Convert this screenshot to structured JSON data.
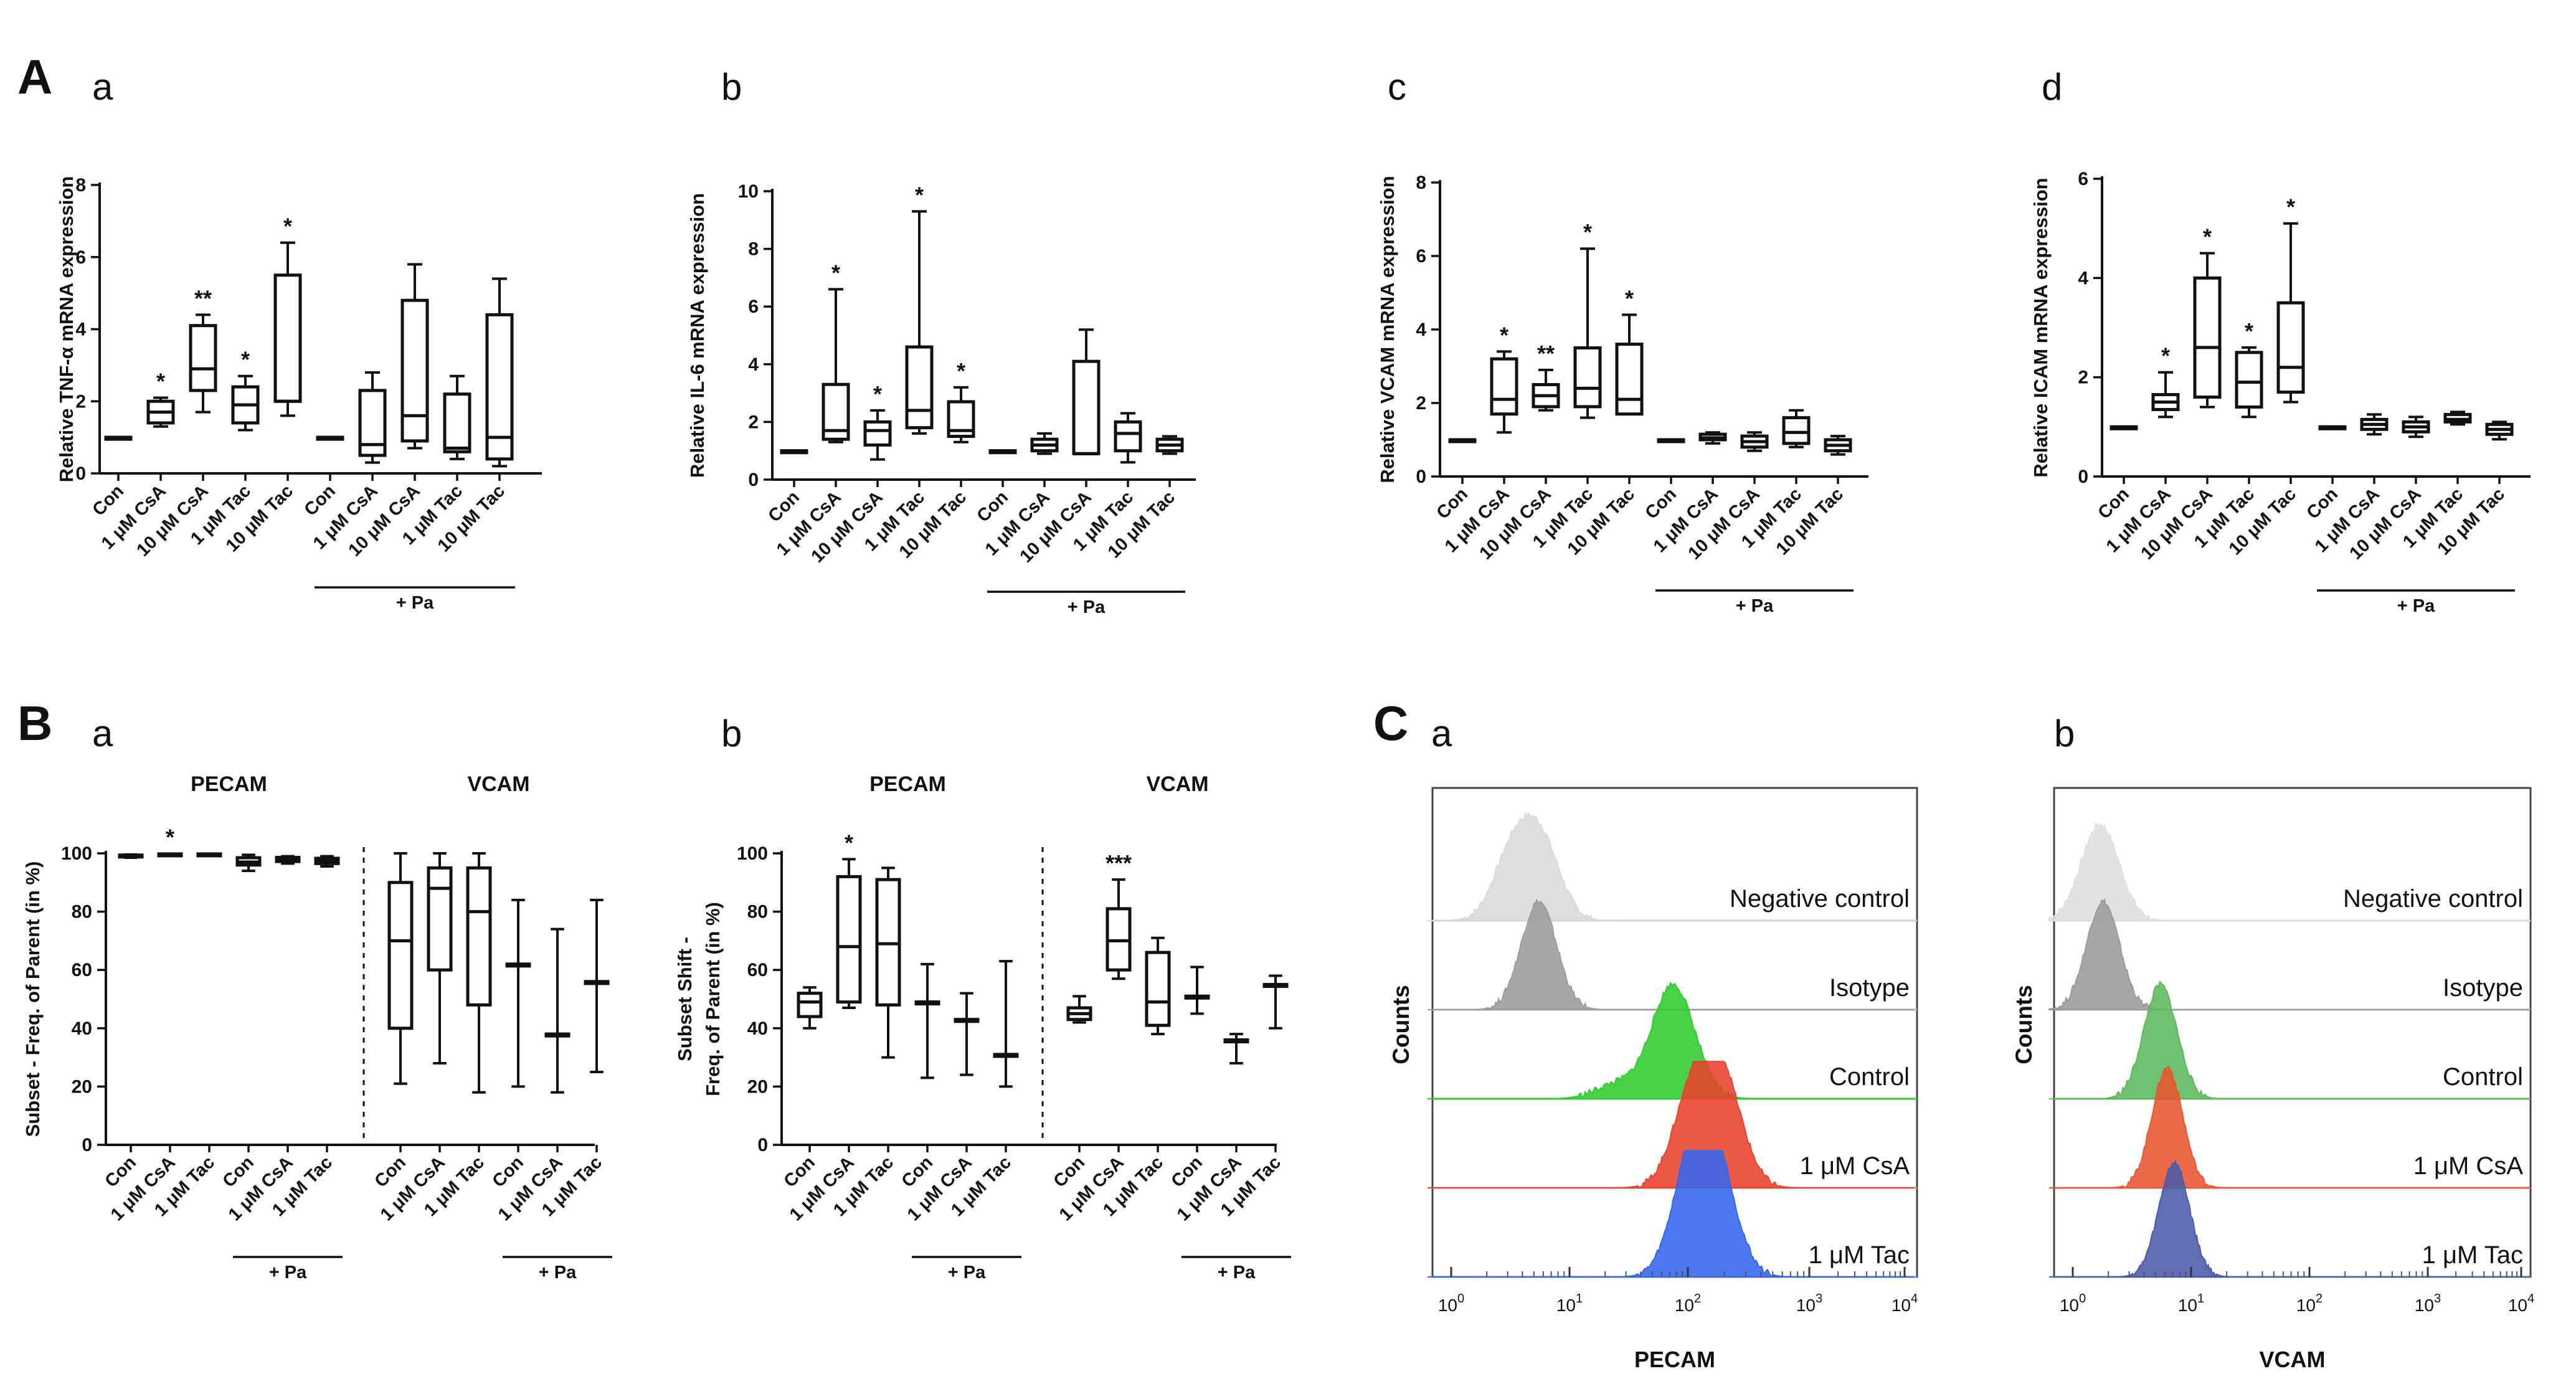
{
  "panel_labels": [
    {
      "letter": "A",
      "sub": "a"
    },
    {
      "letter": "",
      "sub": "b"
    },
    {
      "letter": "",
      "sub": "c"
    },
    {
      "letter": "",
      "sub": "d"
    },
    {
      "letter": "B",
      "sub": "a"
    },
    {
      "letter": "",
      "sub": "b"
    },
    {
      "letter": "C",
      "sub": "a"
    },
    {
      "letter": "",
      "sub": "b"
    }
  ],
  "chart_data": [
    {
      "type": "box",
      "panel": "Aa",
      "ylabel": "Relative TNF-α mRNA expression",
      "ylim": [
        0,
        8
      ],
      "yticks": [
        0,
        2,
        4,
        6,
        8
      ],
      "categories": [
        "Con",
        "1 μM CsA",
        "10 μM CsA",
        "1 μM Tac",
        "10 μM Tac",
        "Con",
        "1 μM CsA",
        "10 μM CsA",
        "1 μM Tac",
        "10 μM Tac"
      ],
      "group_label": "+ Pa",
      "group_range": [
        5,
        9
      ],
      "boxes": [
        {
          "min": 1,
          "q1": 1,
          "med": 1,
          "q3": 1,
          "max": 1
        },
        {
          "min": 1.3,
          "q1": 1.4,
          "med": 1.7,
          "q3": 2.0,
          "max": 2.1
        },
        {
          "min": 1.7,
          "q1": 2.3,
          "med": 2.9,
          "q3": 4.1,
          "max": 4.4
        },
        {
          "min": 1.2,
          "q1": 1.4,
          "med": 1.9,
          "q3": 2.4,
          "max": 2.7
        },
        {
          "min": 1.6,
          "q1": 2.0,
          "med": 2.0,
          "q3": 5.5,
          "max": 6.4
        },
        {
          "min": 1,
          "q1": 1,
          "med": 1,
          "q3": 1,
          "max": 1
        },
        {
          "min": 0.3,
          "q1": 0.5,
          "med": 0.8,
          "q3": 2.3,
          "max": 2.8
        },
        {
          "min": 0.7,
          "q1": 0.9,
          "med": 1.6,
          "q3": 4.8,
          "max": 5.8
        },
        {
          "min": 0.4,
          "q1": 0.6,
          "med": 0.7,
          "q3": 2.2,
          "max": 2.7
        },
        {
          "min": 0.2,
          "q1": 0.4,
          "med": 1.0,
          "q3": 4.4,
          "max": 5.4
        }
      ],
      "annotations": [
        {
          "i": 1,
          "text": "*"
        },
        {
          "i": 2,
          "text": "**"
        },
        {
          "i": 3,
          "text": "*"
        },
        {
          "i": 4,
          "text": "*"
        }
      ]
    },
    {
      "type": "box",
      "panel": "Ab",
      "ylabel": "Relative IL-6 mRNA expression",
      "ylim": [
        0,
        10
      ],
      "yticks": [
        0,
        2,
        4,
        6,
        8,
        10
      ],
      "categories": [
        "Con",
        "1 μM CsA",
        "10 μM CsA",
        "1 μM Tac",
        "10 μM Tac",
        "Con",
        "1 μM CsA",
        "10 μM CsA",
        "1 μM Tac",
        "10 μM Tac"
      ],
      "group_label": "+ Pa",
      "group_range": [
        5,
        9
      ],
      "boxes": [
        {
          "min": 1,
          "q1": 1,
          "med": 1,
          "q3": 1,
          "max": 1
        },
        {
          "min": 1.3,
          "q1": 1.4,
          "med": 1.7,
          "q3": 3.3,
          "max": 6.6
        },
        {
          "min": 0.7,
          "q1": 1.2,
          "med": 1.7,
          "q3": 2.0,
          "max": 2.4
        },
        {
          "min": 1.6,
          "q1": 1.8,
          "med": 2.4,
          "q3": 4.6,
          "max": 9.3
        },
        {
          "min": 1.3,
          "q1": 1.5,
          "med": 1.7,
          "q3": 2.7,
          "max": 3.2
        },
        {
          "min": 1,
          "q1": 1,
          "med": 1,
          "q3": 1,
          "max": 1
        },
        {
          "min": 0.9,
          "q1": 1.0,
          "med": 1.2,
          "q3": 1.4,
          "max": 1.6
        },
        {
          "min": 0.9,
          "q1": 0.9,
          "med": 0.9,
          "q3": 4.1,
          "max": 5.2
        },
        {
          "min": 0.6,
          "q1": 1.0,
          "med": 1.6,
          "q3": 2.0,
          "max": 2.3
        },
        {
          "min": 0.9,
          "q1": 1.0,
          "med": 1.2,
          "q3": 1.4,
          "max": 1.5
        }
      ],
      "annotations": [
        {
          "i": 1,
          "text": "*"
        },
        {
          "i": 2,
          "text": "*"
        },
        {
          "i": 3,
          "text": "*"
        },
        {
          "i": 4,
          "text": "*"
        }
      ]
    },
    {
      "type": "box",
      "panel": "Ac",
      "ylabel": "Relative VCAM mRNA expression",
      "ylim": [
        0,
        8
      ],
      "yticks": [
        0,
        2,
        4,
        6,
        8
      ],
      "categories": [
        "Con",
        "1 μM CsA",
        "10 μM CsA",
        "1 μM Tac",
        "10 μM Tac",
        "Con",
        "1 μM CsA",
        "10 μM CsA",
        "1 μM Tac",
        "10 μM Tac"
      ],
      "group_label": "+ Pa",
      "group_range": [
        5,
        9
      ],
      "boxes": [
        {
          "min": 1,
          "q1": 1,
          "med": 1,
          "q3": 1,
          "max": 1
        },
        {
          "min": 1.2,
          "q1": 1.7,
          "med": 2.1,
          "q3": 3.2,
          "max": 3.4
        },
        {
          "min": 1.8,
          "q1": 1.9,
          "med": 2.2,
          "q3": 2.5,
          "max": 2.9
        },
        {
          "min": 1.6,
          "q1": 1.9,
          "med": 2.4,
          "q3": 3.5,
          "max": 6.2
        },
        {
          "min": 1.7,
          "q1": 1.7,
          "med": 2.1,
          "q3": 3.6,
          "max": 4.4
        },
        {
          "min": 1,
          "q1": 1,
          "med": 1,
          "q3": 1,
          "max": 1
        },
        {
          "min": 0.9,
          "q1": 1.0,
          "med": 1.05,
          "q3": 1.15,
          "max": 1.2
        },
        {
          "min": 0.7,
          "q1": 0.8,
          "med": 0.95,
          "q3": 1.1,
          "max": 1.2
        },
        {
          "min": 0.8,
          "q1": 0.9,
          "med": 1.2,
          "q3": 1.6,
          "max": 1.8
        },
        {
          "min": 0.6,
          "q1": 0.7,
          "med": 0.85,
          "q3": 1.0,
          "max": 1.1
        }
      ],
      "annotations": [
        {
          "i": 1,
          "text": "*"
        },
        {
          "i": 2,
          "text": "**"
        },
        {
          "i": 3,
          "text": "*"
        },
        {
          "i": 4,
          "text": "*"
        }
      ]
    },
    {
      "type": "box",
      "panel": "Ad",
      "ylabel": "Relative ICAM mRNA expression",
      "ylim": [
        0,
        6
      ],
      "yticks": [
        0,
        2,
        4,
        6
      ],
      "categories": [
        "Con",
        "1 μM CsA",
        "10 μM CsA",
        "1 μM Tac",
        "10 μM Tac",
        "Con",
        "1 μM CsA",
        "10 μM CsA",
        "1 μM Tac",
        "10 μM Tac"
      ],
      "group_label": "+ Pa",
      "group_range": [
        5,
        9
      ],
      "boxes": [
        {
          "min": 1,
          "q1": 1,
          "med": 1,
          "q3": 1,
          "max": 1
        },
        {
          "min": 1.2,
          "q1": 1.35,
          "med": 1.5,
          "q3": 1.65,
          "max": 2.1
        },
        {
          "min": 1.4,
          "q1": 1.6,
          "med": 2.6,
          "q3": 4.0,
          "max": 4.5
        },
        {
          "min": 1.2,
          "q1": 1.4,
          "med": 1.9,
          "q3": 2.5,
          "max": 2.6
        },
        {
          "min": 1.5,
          "q1": 1.7,
          "med": 2.2,
          "q3": 3.5,
          "max": 5.1
        },
        {
          "min": 1,
          "q1": 1,
          "med": 1,
          "q3": 1,
          "max": 1
        },
        {
          "min": 0.85,
          "q1": 0.95,
          "med": 1.05,
          "q3": 1.15,
          "max": 1.25
        },
        {
          "min": 0.8,
          "q1": 0.9,
          "med": 1.0,
          "q3": 1.1,
          "max": 1.2
        },
        {
          "min": 1.05,
          "q1": 1.1,
          "med": 1.15,
          "q3": 1.25,
          "max": 1.3
        },
        {
          "min": 0.75,
          "q1": 0.85,
          "med": 0.95,
          "q3": 1.05,
          "max": 1.1
        }
      ],
      "annotations": [
        {
          "i": 1,
          "text": "*"
        },
        {
          "i": 2,
          "text": "*"
        },
        {
          "i": 3,
          "text": "*"
        },
        {
          "i": 4,
          "text": "*"
        }
      ]
    },
    {
      "type": "box",
      "panel": "Ba",
      "ylabel": "Subset - Freq. of Parent (in %)",
      "ylim": [
        0,
        100
      ],
      "yticks": [
        0,
        20,
        40,
        60,
        80,
        100
      ],
      "categories": [
        "Con",
        "1 μM CsA",
        "1 μM Tac",
        "Con",
        "1 μM CsA",
        "1 μM Tac",
        "Con",
        "1 μM CsA",
        "1 μM Tac",
        "Con",
        "1 μM CsA",
        "1 μM Tac"
      ],
      "section_titles": [
        "PECAM",
        "VCAM"
      ],
      "group_labels": [
        {
          "label": "+ Pa",
          "range": [
            3,
            5
          ]
        },
        {
          "label": "+ Pa",
          "range": [
            9,
            11
          ]
        }
      ],
      "boxes": [
        {
          "min": 98.5,
          "q1": 98.8,
          "med": 99.1,
          "q3": 99.4,
          "max": 99.6
        },
        {
          "min": 99.2,
          "q1": 99.4,
          "med": 99.6,
          "q3": 99.8,
          "max": 99.9
        },
        {
          "min": 99.2,
          "q1": 99.4,
          "med": 99.6,
          "q3": 99.8,
          "max": 99.9
        },
        {
          "min": 94,
          "q1": 96,
          "med": 97,
          "q3": 98.5,
          "max": 99.5
        },
        {
          "min": 96.5,
          "q1": 97.2,
          "med": 98,
          "q3": 98.6,
          "max": 99
        },
        {
          "min": 95.5,
          "q1": 96.5,
          "med": 97.5,
          "q3": 98.3,
          "max": 99
        },
        {
          "min": 21,
          "q1": 40,
          "med": 70,
          "q3": 90,
          "max": 100
        },
        {
          "min": 28,
          "q1": 60,
          "med": 88,
          "q3": 95,
          "max": 100
        },
        {
          "min": 18,
          "q1": 48,
          "med": 80,
          "q3": 95,
          "max": 100
        },
        {
          "min": 20,
          "q1": 62,
          "med": 62,
          "q3": 62,
          "max": 84
        },
        {
          "min": 18,
          "q1": 38,
          "med": 38,
          "q3": 38,
          "max": 74
        },
        {
          "min": 25,
          "q1": 56,
          "med": 56,
          "q3": 56,
          "max": 84
        }
      ],
      "annotations": [
        {
          "i": 1,
          "text": "*"
        }
      ]
    },
    {
      "type": "box",
      "panel": "Bb",
      "ylabel": "Subset Shift -",
      "ylabel2": "Freq. of Parent (in %)",
      "ylim": [
        0,
        100
      ],
      "yticks": [
        0,
        20,
        40,
        60,
        80,
        100
      ],
      "categories": [
        "Con",
        "1 μM CsA",
        "1 μM Tac",
        "Con",
        "1 μM CsA",
        "1 μM Tac",
        "Con",
        "1 μM CsA",
        "1 μM Tac",
        "Con",
        "1 μM CsA",
        "1 μM Tac"
      ],
      "section_titles": [
        "PECAM",
        "VCAM"
      ],
      "group_labels": [
        {
          "label": "+ Pa",
          "range": [
            3,
            5
          ]
        },
        {
          "label": "+ Pa",
          "range": [
            9,
            11
          ]
        }
      ],
      "boxes": [
        {
          "min": 40,
          "q1": 44,
          "med": 49,
          "q3": 52,
          "max": 54
        },
        {
          "min": 47,
          "q1": 49,
          "med": 68,
          "q3": 92,
          "max": 98
        },
        {
          "min": 30,
          "q1": 48,
          "med": 69,
          "q3": 91,
          "max": 95
        },
        {
          "min": 23,
          "q1": 49,
          "med": 49,
          "q3": 49,
          "max": 62
        },
        {
          "min": 24,
          "q1": 43,
          "med": 43,
          "q3": 43,
          "max": 52
        },
        {
          "min": 20,
          "q1": 31,
          "med": 31,
          "q3": 31,
          "max": 63
        },
        {
          "min": 42,
          "q1": 43,
          "med": 45,
          "q3": 47,
          "max": 51
        },
        {
          "min": 57,
          "q1": 60,
          "med": 70,
          "q3": 81,
          "max": 91
        },
        {
          "min": 38,
          "q1": 41,
          "med": 49,
          "q3": 66,
          "max": 71
        },
        {
          "min": 45,
          "q1": 51,
          "med": 51,
          "q3": 51,
          "max": 61
        },
        {
          "min": 28,
          "q1": 36,
          "med": 36,
          "q3": 36,
          "max": 38
        },
        {
          "min": 40,
          "q1": 55,
          "med": 55,
          "q3": 55,
          "max": 58
        }
      ],
      "annotations": [
        {
          "i": 1,
          "text": "*"
        },
        {
          "i": 7,
          "text": "***"
        }
      ]
    },
    {
      "type": "histogram",
      "panel": "Ca",
      "xlabel": "PECAM",
      "ylabel": "Counts",
      "xscale": "log",
      "xlim": [
        0.6,
        15000
      ],
      "tick_labels": [
        "10^0",
        "10^1",
        "10^2",
        "10^3",
        "10^4"
      ],
      "series": [
        {
          "name": "Negative control",
          "color": "#d9d9d9",
          "line": "#c9c9c9",
          "peaks": [
            {
              "center": 3.3,
              "height": 0.55
            },
            {
              "center": 5.8,
              "height": 0.62
            }
          ],
          "width": 0.16
        },
        {
          "name": "Isotype",
          "color": "#9b9b9b",
          "line": "#b5b5b5",
          "peaks": [
            {
              "center": 5.5,
              "height": 0.9
            }
          ],
          "width": 0.15
        },
        {
          "name": "Control",
          "color": "#2ecc2e",
          "line": "#3ccc3c",
          "peaks": [
            {
              "center": 75,
              "height": 0.95
            },
            {
              "center": 25,
              "height": 0.12
            }
          ],
          "width": 0.18
        },
        {
          "name": "1 μM CsA",
          "color": "#e8412c",
          "line": "#f08070",
          "peaks": [
            {
              "center": 110,
              "height": 0.72
            },
            {
              "center": 190,
              "height": 0.85
            }
          ],
          "width": 0.17
        },
        {
          "name": "1 μM Tac",
          "color": "#3366ee",
          "line": "#6f8cee",
          "peaks": [
            {
              "center": 110,
              "height": 0.88
            },
            {
              "center": 170,
              "height": 0.78
            }
          ],
          "width": 0.17
        }
      ]
    },
    {
      "type": "histogram",
      "panel": "Cb",
      "xlabel": "VCAM",
      "ylabel": "Counts",
      "xscale": "log",
      "xlim": [
        0.6,
        15000
      ],
      "tick_labels": [
        "10^0",
        "10^1",
        "10^2",
        "10^3",
        "10^4"
      ],
      "series": [
        {
          "name": "Negative control",
          "color": "#dedede",
          "line": "#cfcfcf",
          "peaks": [
            {
              "center": 1.7,
              "height": 0.8
            }
          ],
          "width": 0.16
        },
        {
          "name": "Isotype",
          "color": "#9a9a9a",
          "line": "#b0b0b0",
          "peaks": [
            {
              "center": 1.8,
              "height": 0.9
            }
          ],
          "width": 0.14
        },
        {
          "name": "Control",
          "color": "#5cb85c",
          "line": "#5cc45c",
          "peaks": [
            {
              "center": 5.5,
              "height": 0.95
            }
          ],
          "width": 0.14
        },
        {
          "name": "1 μM CsA",
          "color": "#e8552e",
          "line": "#f07a60",
          "peaks": [
            {
              "center": 6.3,
              "height": 1.0
            }
          ],
          "width": 0.13
        },
        {
          "name": "1 μM Tac",
          "color": "#4a5ba8",
          "line": "#7c86c0",
          "peaks": [
            {
              "center": 7.2,
              "height": 0.95
            }
          ],
          "width": 0.13
        }
      ]
    }
  ]
}
